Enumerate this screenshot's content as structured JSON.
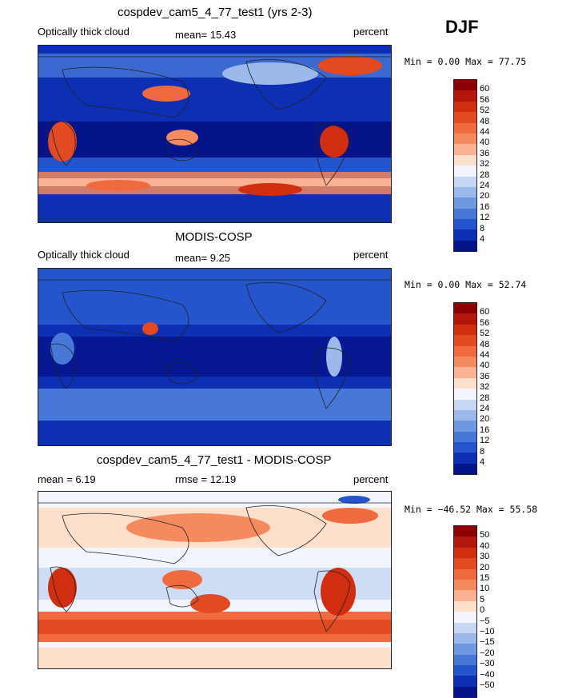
{
  "season": "DJF",
  "panels": [
    {
      "id": "p1",
      "title": "cospdev_cam5_4_77_test1 (yrs 2-3)",
      "left_label": "Optically thick cloud",
      "mid_label": "mean=   15.43",
      "right_label": "percent",
      "minmax": "Min =    0.00 Max =  77.75",
      "levels": [
        "60",
        "56",
        "52",
        "48",
        "44",
        "40",
        "36",
        "32",
        "28",
        "24",
        "20",
        "16",
        "12",
        "8",
        "4"
      ],
      "colors": [
        "#8b0000",
        "#b3160b",
        "#d12d10",
        "#e24a22",
        "#ef6a3e",
        "#f58a5e",
        "#fbb292",
        "#fde0cc",
        "#f2f5fb",
        "#c6d7f3",
        "#9bb9ea",
        "#6f98e0",
        "#4778d8",
        "#2555cc",
        "#0d2fb3",
        "#06148a"
      ]
    },
    {
      "id": "p2",
      "title": "MODIS-COSP",
      "left_label": "Optically thick cloud",
      "mid_label": "mean=    9.25",
      "right_label": "percent",
      "minmax": "Min =    0.00 Max =  52.74",
      "levels": [
        "60",
        "56",
        "52",
        "48",
        "44",
        "40",
        "36",
        "32",
        "28",
        "24",
        "20",
        "16",
        "12",
        "8",
        "4"
      ],
      "colors": [
        "#8b0000",
        "#b3160b",
        "#d12d10",
        "#e24a22",
        "#ef6a3e",
        "#f58a5e",
        "#fbb292",
        "#fde0cc",
        "#f2f5fb",
        "#c6d7f3",
        "#9bb9ea",
        "#6f98e0",
        "#4778d8",
        "#2555cc",
        "#0d2fb3",
        "#06148a"
      ]
    },
    {
      "id": "p3",
      "title": "cospdev_cam5_4_77_test1 - MODIS-COSP",
      "left_label": "mean =    6.19",
      "mid_label": "rmse =   12.19",
      "right_label": "percent",
      "minmax": "Min = −46.52 Max =  55.58",
      "levels": [
        "50",
        "40",
        "30",
        "20",
        "15",
        "10",
        "5",
        "0",
        "−5",
        "−10",
        "−15",
        "−20",
        "−30",
        "−40",
        "−50"
      ],
      "colors": [
        "#8b0000",
        "#b3160b",
        "#d12d10",
        "#e24a22",
        "#ef6a3e",
        "#f58a5e",
        "#fbb292",
        "#fde0cc",
        "#f2f5fb",
        "#c6d7f3",
        "#9bb9ea",
        "#6f98e0",
        "#4778d8",
        "#2555cc",
        "#0d2fb3",
        "#06148a"
      ]
    }
  ]
}
